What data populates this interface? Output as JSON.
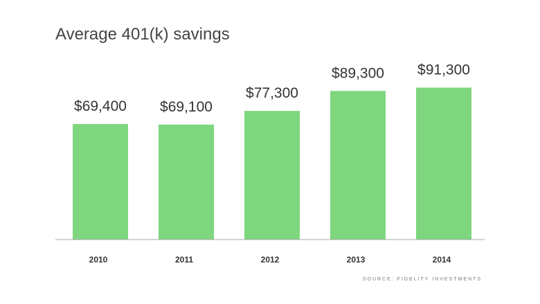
{
  "chart_data": {
    "type": "bar",
    "title": "Average 401(k) savings",
    "categories": [
      "2010",
      "2011",
      "2012",
      "2013",
      "2014"
    ],
    "values": [
      69400,
      69100,
      77300,
      89300,
      91300
    ],
    "data_labels": [
      "$69,400",
      "$69,100",
      "$77,300",
      "$89,300",
      "$91,300"
    ],
    "xlabel": "",
    "ylabel": "",
    "ylim": [
      0,
      104000
    ],
    "grid": false,
    "legend": "none",
    "bar_color": "#7ed67e",
    "baseline_color": "#aaaaaa"
  },
  "source": "SOURCE: FIDELITY INVESTMENTS"
}
